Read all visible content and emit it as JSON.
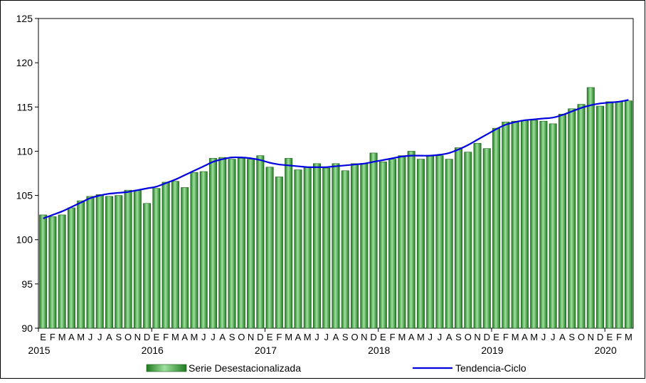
{
  "chart_data": {
    "type": "bar",
    "ylim": [
      90,
      125
    ],
    "yticks": [
      90,
      95,
      100,
      105,
      110,
      115,
      120,
      125
    ],
    "grid": false,
    "legend_position": "bottom",
    "month_letters": [
      "E",
      "F",
      "M",
      "A",
      "M",
      "J",
      "J",
      "A",
      "S",
      "O",
      "N",
      "D",
      "E",
      "F",
      "M",
      "A",
      "M",
      "J",
      "J",
      "A",
      "S",
      "O",
      "N",
      "D",
      "E",
      "F",
      "M",
      "A",
      "M",
      "J",
      "J",
      "A",
      "S",
      "O",
      "N",
      "D",
      "E",
      "F",
      "M",
      "A",
      "M",
      "J",
      "J",
      "A",
      "S",
      "O",
      "N",
      "D",
      "E",
      "F",
      "M",
      "A",
      "M",
      "J",
      "J",
      "A",
      "S",
      "O",
      "N",
      "D",
      "E",
      "F",
      "M"
    ],
    "years": [
      {
        "label": "2015",
        "start_index": 0
      },
      {
        "label": "2016",
        "start_index": 12
      },
      {
        "label": "2017",
        "start_index": 24
      },
      {
        "label": "2018",
        "start_index": 36
      },
      {
        "label": "2019",
        "start_index": 48
      },
      {
        "label": "2020",
        "start_index": 60
      }
    ],
    "series": [
      {
        "name": "Serie Desestacionalizada",
        "kind": "bar",
        "color": "#3aa63a",
        "values": [
          102.8,
          102.6,
          102.8,
          103.6,
          104.4,
          104.9,
          105.1,
          104.9,
          105.0,
          105.6,
          105.6,
          104.1,
          105.8,
          106.5,
          106.6,
          105.9,
          107.6,
          107.7,
          109.2,
          109.3,
          109.1,
          109.2,
          109.1,
          109.5,
          108.2,
          107.1,
          109.2,
          107.9,
          108.2,
          108.6,
          108.1,
          108.6,
          107.8,
          108.6,
          108.6,
          109.8,
          108.8,
          109.1,
          109.5,
          110.0,
          109.1,
          109.5,
          109.5,
          109.1,
          110.4,
          109.9,
          110.9,
          110.3,
          112.6,
          113.3,
          113.4,
          113.5,
          113.5,
          113.4,
          113.1,
          114.2,
          114.8,
          115.3,
          117.2,
          115.1,
          115.6,
          115.6,
          115.7
        ]
      },
      {
        "name": "Tendencia-Ciclo",
        "kind": "line",
        "color": "#0000e0",
        "values": [
          102.4,
          102.8,
          103.2,
          103.7,
          104.2,
          104.7,
          105.0,
          105.2,
          105.3,
          105.4,
          105.6,
          105.8,
          106.0,
          106.4,
          106.8,
          107.3,
          107.8,
          108.3,
          108.8,
          109.1,
          109.3,
          109.3,
          109.2,
          109.0,
          108.7,
          108.5,
          108.4,
          108.3,
          108.2,
          108.2,
          108.2,
          108.3,
          108.4,
          108.5,
          108.6,
          108.8,
          109.0,
          109.2,
          109.4,
          109.5,
          109.5,
          109.5,
          109.6,
          109.8,
          110.2,
          110.7,
          111.3,
          111.9,
          112.5,
          113.0,
          113.3,
          113.5,
          113.6,
          113.7,
          113.8,
          114.1,
          114.5,
          114.9,
          115.2,
          115.4,
          115.5,
          115.6,
          115.8
        ]
      }
    ]
  }
}
